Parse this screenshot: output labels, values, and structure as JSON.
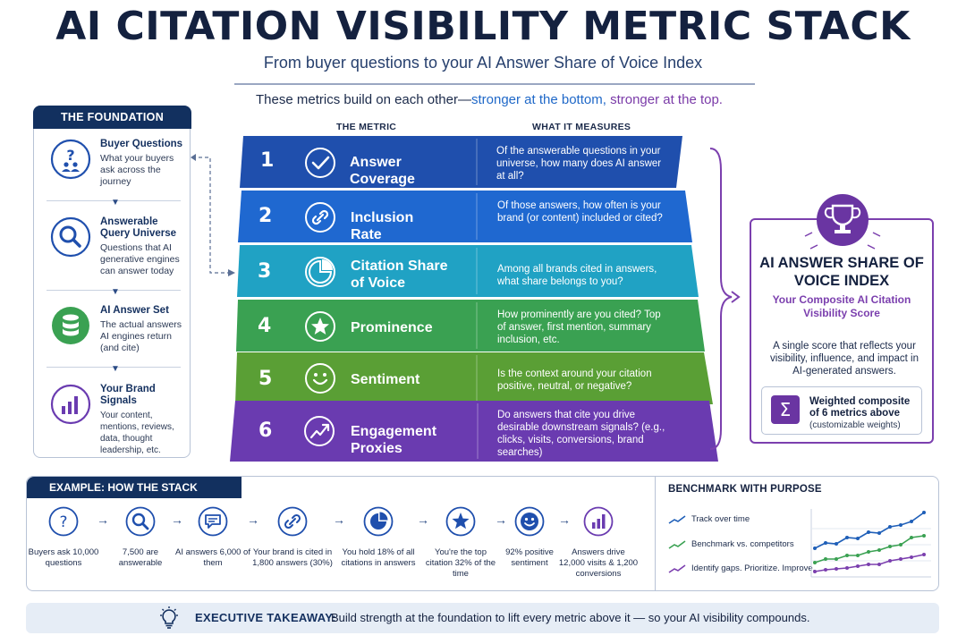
{
  "header": {
    "title": "AI CITATION VISIBILITY METRIC STACK",
    "subtitle": "From buyer questions to your AI Answer Share of Voice Index",
    "note_prefix": "These metrics build on each other—",
    "note_blue": "stronger at the bottom,",
    "note_purple": "stronger at the top."
  },
  "foundation": {
    "heading": "THE FOUNDATION",
    "items": [
      {
        "title": "Buyer Questions",
        "desc": "What your buyers ask across the journey",
        "icon": "question-people-icon"
      },
      {
        "title": "Answerable Query Universe",
        "desc": "Questions that AI generative engines can answer today",
        "icon": "search-icon"
      },
      {
        "title": "AI Answer Set",
        "desc": "The actual answers AI engines return (and cite)",
        "icon": "database-icon"
      },
      {
        "title": "Your Brand Signals",
        "desc": "Your content, mentions, reviews, data, thought leadership, etc.",
        "icon": "bar-chart-icon"
      }
    ]
  },
  "stack": {
    "col_metric": "THE METRIC",
    "col_measures": "WHAT IT MEASURES",
    "metrics": [
      {
        "num": "1",
        "name": "Answer Coverage",
        "desc": "Of the answerable questions in your universe, how many does AI answer at all?",
        "icon": "check-circle-icon",
        "color": "#1f4fad"
      },
      {
        "num": "2",
        "name": "Inclusion Rate",
        "desc": "Of those answers, how often is your brand (or content) included or cited?",
        "icon": "link-icon",
        "color": "#1f68d0"
      },
      {
        "num": "3",
        "name": "Citation Share of Voice",
        "desc": "Among all brands cited in answers, what share belongs to you?",
        "icon": "pie-chart-icon",
        "color": "#20a2c4"
      },
      {
        "num": "4",
        "name": "Prominence",
        "desc": "How prominently are you cited? Top of answer, first mention, summary inclusion, etc.",
        "icon": "star-icon",
        "color": "#3aa152"
      },
      {
        "num": "5",
        "name": "Sentiment",
        "desc": "Is the context around your citation positive, neutral, or negative?",
        "icon": "smiley-icon",
        "color": "#5a9f35"
      },
      {
        "num": "6",
        "name": "Engagement Proxies",
        "desc": "Do answers that cite you drive desirable downstream signals? (e.g., clicks, visits, conversions, brand searches)",
        "icon": "trend-up-icon",
        "color": "#6a3bb0"
      }
    ]
  },
  "index": {
    "title": "AI ANSWER SHARE OF VOICE INDEX",
    "subtitle": "Your Composite AI Citation Visibility Score",
    "desc": "A single score that reflects your visibility, influence, and impact in AI-generated answers.",
    "weighted_title": "Weighted composite of 6 metrics above",
    "weighted_note": "(customizable weights)",
    "icon": "trophy-icon",
    "accent": "#7b3fae"
  },
  "example": {
    "heading": "EXAMPLE: HOW THE STACK WORKS",
    "steps": [
      {
        "text": "Buyers ask 10,000 questions",
        "icon": "question-icon"
      },
      {
        "text": "7,500 are answerable",
        "icon": "search-icon"
      },
      {
        "text": "AI answers 6,000 of them",
        "icon": "chat-icon"
      },
      {
        "text": "Your brand is cited in 1,800 answers (30%)",
        "icon": "link-icon"
      },
      {
        "text": "You hold 18% of all citations in answers",
        "icon": "pie-chart-icon"
      },
      {
        "text": "You're the top citation 32% of the time",
        "icon": "star-icon"
      },
      {
        "text": "92% positive sentiment",
        "icon": "smiley-icon"
      },
      {
        "text": "Answers drive 12,000 visits & 1,200 conversions",
        "icon": "bar-chart-icon"
      }
    ]
  },
  "benchmark": {
    "heading": "BENCHMARK WITH PURPOSE",
    "items": [
      {
        "label": "Track over time",
        "color": "#1f5fb8"
      },
      {
        "label": "Benchmark vs. competitors",
        "color": "#3aa152"
      },
      {
        "label": "Identify gaps. Prioritize. Improve.",
        "color": "#7b3fae"
      }
    ]
  },
  "takeaway": {
    "label": "EXECUTIVE TAKEAWAY:",
    "text": "Build strength at the foundation to lift every metric above it — so your AI visibility compounds.",
    "icon": "lightbulb-icon"
  }
}
